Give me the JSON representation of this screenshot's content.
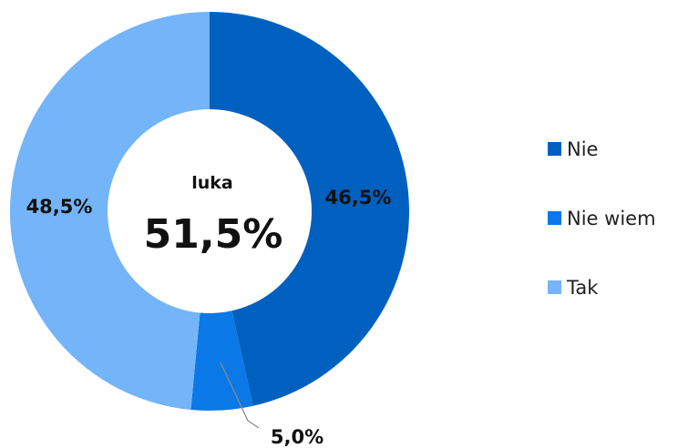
{
  "chart_data": {
    "type": "pie",
    "donut": true,
    "categories": [
      "Nie",
      "Nie wiem",
      "Tak"
    ],
    "values": [
      46.5,
      5.0,
      48.5
    ],
    "labels": [
      "46,5%",
      "5,0%",
      "48,5%"
    ],
    "colors": [
      "#0060c0",
      "#0a78e6",
      "#74b4f8"
    ],
    "center": {
      "title": "luka",
      "value": "51,5%"
    },
    "legend": {
      "placement": "right",
      "items": [
        "Nie",
        "Nie wiem",
        "Tak"
      ]
    }
  }
}
